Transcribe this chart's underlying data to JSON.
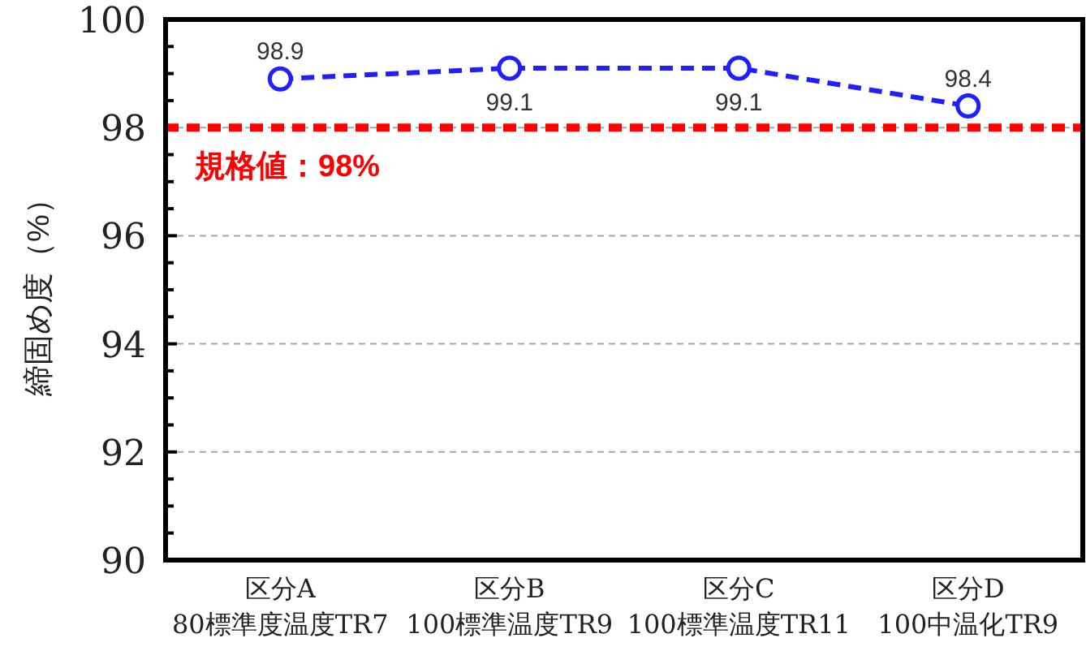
{
  "chart_data": {
    "type": "line",
    "ylabel": "締固め度（%）",
    "categories": [
      "区分A\n80標準度温度TR7",
      "区分B\n100標準温度TR9",
      "区分C\n100標準温度TR11",
      "区分D\n100中温化TR9"
    ],
    "series": [
      {
        "color": "#1f1fff",
        "values": [
          98.9,
          99.1,
          99.1,
          98.4
        ]
      }
    ],
    "marker": "circle",
    "line_style": "dashed",
    "data_labels": true,
    "ylim": [
      90,
      100
    ],
    "yticks": [
      90,
      {
        "value": 90.5,
        "label": null
      },
      {
        "value": 91,
        "label": null
      },
      {
        "value": 91.5,
        "label": null
      },
      92,
      {
        "value": 92.5,
        "label": null
      },
      {
        "value": 93,
        "label": null
      },
      {
        "value": 93.5,
        "label": null
      },
      94,
      {
        "value": 94.5,
        "label": null
      },
      {
        "value": 95,
        "label": null
      },
      {
        "value": 95.5,
        "label": null
      },
      96,
      {
        "value": 96.5,
        "label": null
      },
      {
        "value": 97,
        "label": null
      },
      {
        "value": 97.5,
        "label": null
      },
      98,
      {
        "value": 98.5,
        "label": null
      },
      {
        "value": 99,
        "label": null
      },
      {
        "value": 99.5,
        "label": null
      },
      100
    ],
    "grid": "y",
    "ref_lines": [
      {
        "axis": "y",
        "value": 98,
        "label": "規格値：98%",
        "color": "#ff0000",
        "line_style": "dashed"
      }
    ]
  }
}
